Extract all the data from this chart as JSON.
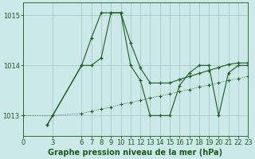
{
  "title": "Graphe pression niveau de la mer (hPa)",
  "bg_color": "#cce8e8",
  "grid_color": "#aacece",
  "line_color": "#1a5c1a",
  "xlim": [
    0,
    23
  ],
  "ylim": [
    1012.6,
    1015.25
  ],
  "yticks": [
    1013,
    1014,
    1015
  ],
  "xticks": [
    0,
    3,
    6,
    7,
    8,
    9,
    10,
    11,
    12,
    13,
    14,
    15,
    16,
    17,
    18,
    19,
    20,
    21,
    22,
    23
  ],
  "series1_x": [
    2.5,
    6,
    7,
    8,
    9,
    10,
    11,
    12,
    13,
    14,
    15,
    16,
    17,
    18,
    19,
    20,
    21,
    22,
    23
  ],
  "series1_y": [
    1012.82,
    1014.0,
    1014.55,
    1015.05,
    1015.05,
    1015.05,
    1014.45,
    1013.95,
    1013.65,
    1013.65,
    1013.65,
    1013.72,
    1013.78,
    1013.84,
    1013.9,
    1013.96,
    1014.02,
    1014.05,
    1014.05
  ],
  "series2_x": [
    2.5,
    6,
    7,
    8,
    9,
    10,
    11,
    12,
    13,
    14,
    15,
    16,
    17,
    18,
    19,
    20,
    21,
    22,
    23
  ],
  "series2_y": [
    1012.82,
    1014.0,
    1014.0,
    1014.15,
    1015.05,
    1015.05,
    1014.0,
    1013.7,
    1013.0,
    1013.0,
    1013.0,
    1013.6,
    1013.85,
    1014.0,
    1014.0,
    1013.0,
    1013.85,
    1014.0,
    1014.0
  ],
  "series3_x": [
    0,
    3,
    6,
    7,
    8,
    9,
    10,
    11,
    12,
    13,
    14,
    15,
    16,
    17,
    18,
    19,
    20,
    21,
    22,
    23
  ],
  "series3_y": [
    1013.0,
    1013.0,
    1013.04,
    1013.09,
    1013.13,
    1013.17,
    1013.22,
    1013.26,
    1013.3,
    1013.35,
    1013.39,
    1013.43,
    1013.48,
    1013.52,
    1013.57,
    1013.61,
    1013.65,
    1013.7,
    1013.74,
    1013.78
  ],
  "tick_fontsize": 6,
  "xlabel_fontsize": 7
}
